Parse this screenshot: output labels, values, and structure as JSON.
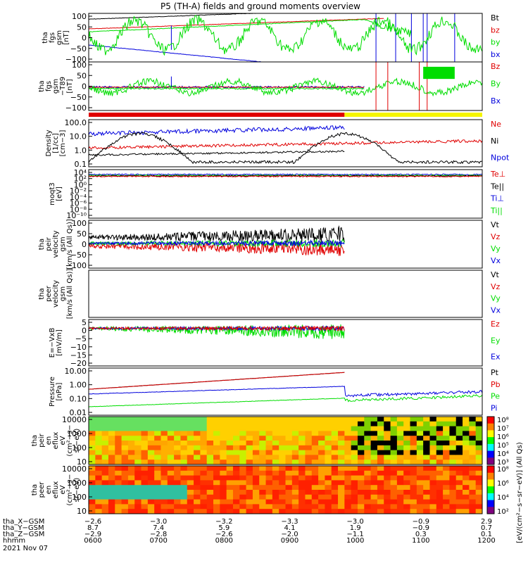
{
  "title": "P5 (TH-A) fields and ground moments overview",
  "colors": {
    "black": "#000000",
    "red": "#e00000",
    "green": "#00dd00",
    "blue": "#0000dd",
    "yellow": "#f5f500"
  },
  "chart_data": [
    {
      "type": "line",
      "ylabel": [
        "tha",
        "fgs",
        "gsm",
        "[nT]"
      ],
      "yticks": [
        "100",
        "50",
        "0",
        "−50",
        "−100"
      ],
      "ylim": [
        -100,
        100
      ],
      "legend": [
        {
          "name": "Bt",
          "color": "#000000"
        },
        {
          "name": "bz",
          "color": "#e00000"
        },
        {
          "name": "by",
          "color": "#00dd00"
        },
        {
          "name": "bx",
          "color": "#0000dd"
        }
      ]
    },
    {
      "type": "line",
      "ylabel": [
        "tha",
        "fgs",
        "gsm",
        "−T89",
        "[nT]"
      ],
      "yticks": [
        "100",
        "50",
        "0",
        "−50",
        "−100"
      ],
      "ylim": [
        -125,
        125
      ],
      "legend": [
        {
          "name": "Bz",
          "color": "#e00000"
        },
        {
          "name": "By",
          "color": "#00dd00"
        },
        {
          "name": "Bx",
          "color": "#0000dd"
        }
      ]
    },
    {
      "type": "line",
      "ylabel": [
        "Density",
        "[1/cc]",
        "[cm−3]"
      ],
      "yticks": [
        "100.0",
        "10.0",
        "1.0",
        "0.1"
      ],
      "scale": "log",
      "legend": [
        {
          "name": "Ne",
          "color": "#e00000"
        },
        {
          "name": "Ni",
          "color": "#000000"
        },
        {
          "name": "Npot",
          "color": "#0000dd"
        }
      ]
    },
    {
      "type": "line",
      "ylabel": [
        "moqt3",
        "[eV]"
      ],
      "yticks": [
        "10⁴",
        "10²",
        "10⁰",
        "10⁻²",
        "10⁻⁴",
        "10⁻⁶",
        "10⁻⁸",
        "10⁻¹⁰"
      ],
      "scale": "log",
      "legend": [
        {
          "name": "Te⊥",
          "color": "#e00000"
        },
        {
          "name": "Te||",
          "color": "#000000"
        },
        {
          "name": "Ti⊥",
          "color": "#0000dd"
        },
        {
          "name": "Ti||",
          "color": "#00dd00"
        }
      ]
    },
    {
      "type": "line",
      "ylabel": [
        "tha",
        "peir",
        "velocity",
        "gsm",
        "[km/s (All Qs)]"
      ],
      "yticks": [
        "100",
        "50",
        "0",
        "−50",
        "−100"
      ],
      "ylim": [
        -100,
        100
      ],
      "legend": [
        {
          "name": "Vt",
          "color": "#000000"
        },
        {
          "name": "Vz",
          "color": "#e00000"
        },
        {
          "name": "Vy",
          "color": "#00dd00"
        },
        {
          "name": "Vx",
          "color": "#0000dd"
        }
      ]
    },
    {
      "type": "line",
      "ylabel": [
        "tha",
        "peer",
        "velocity",
        "gsm",
        "[km/s (All Qs)]"
      ],
      "yticks": [],
      "legend": [
        {
          "name": "Vt",
          "color": "#000000"
        },
        {
          "name": "Vz",
          "color": "#e00000"
        },
        {
          "name": "Vy",
          "color": "#00dd00"
        },
        {
          "name": "Vx",
          "color": "#0000dd"
        }
      ]
    },
    {
      "type": "line",
      "ylabel": [
        "E=−VxB",
        "[mV/m]"
      ],
      "yticks": [
        "5",
        "0",
        "−5",
        "−10",
        "−15",
        "−20"
      ],
      "ylim": [
        -20,
        5
      ],
      "legend": [
        {
          "name": "Ez",
          "color": "#e00000"
        },
        {
          "name": "Ey",
          "color": "#00dd00"
        },
        {
          "name": "Ex",
          "color": "#0000dd"
        }
      ]
    },
    {
      "type": "line",
      "ylabel": [
        "Pressure",
        "[nPa]"
      ],
      "yticks": [
        "10.00",
        "1.00",
        "0.10",
        "0.01"
      ],
      "scale": "log",
      "legend": [
        {
          "name": "Pt",
          "color": "#000000"
        },
        {
          "name": "Pb",
          "color": "#e00000"
        },
        {
          "name": "Pe",
          "color": "#00dd00"
        },
        {
          "name": "Pi",
          "color": "#0000dd"
        }
      ]
    },
    {
      "type": "heatmap",
      "ylabel": [
        "tha",
        "peir",
        "en",
        "eflux",
        "eV",
        "(cm²−s−",
        "sr−eV)"
      ],
      "yticks": [
        "10000",
        "1000",
        "100",
        "10"
      ],
      "colorbar_ticks": [
        "10⁸",
        "10⁷",
        "10⁶",
        "10⁵",
        "10⁴",
        "10³"
      ],
      "colorbar_label": "[eV/(cm²−s−sr−eV)] (All Qs)"
    },
    {
      "type": "heatmap",
      "ylabel": [
        "tha",
        "peer",
        "en",
        "eflux",
        "eV",
        "(cm²−s−",
        "sr−eV)"
      ],
      "yticks": [
        "10000",
        "1000",
        "100",
        "10"
      ],
      "colorbar_ticks": [
        "10⁸",
        "10⁶",
        "10⁴",
        "10²"
      ]
    }
  ],
  "xaxis": {
    "rows": [
      {
        "label": "tha_X−GSM",
        "values": [
          "−2.6",
          "−3.0",
          "−3.2",
          "−3.3",
          "−3.0",
          "−0.9",
          "2.9"
        ]
      },
      {
        "label": "tha_Y−GSM",
        "values": [
          "8.7",
          "7.4",
          "5.9",
          "4.1",
          "1.9",
          "−0.9",
          "0.7"
        ]
      },
      {
        "label": "tha_Z−GSM",
        "values": [
          "−2.9",
          "−2.8",
          "−2.6",
          "−2.0",
          "−1.1",
          "0.3",
          "0.1"
        ]
      },
      {
        "label": "hhmm",
        "values": [
          "0600",
          "0700",
          "0800",
          "0900",
          "1000",
          "1100",
          "1200"
        ]
      }
    ],
    "date": "2021 Nov 07"
  }
}
